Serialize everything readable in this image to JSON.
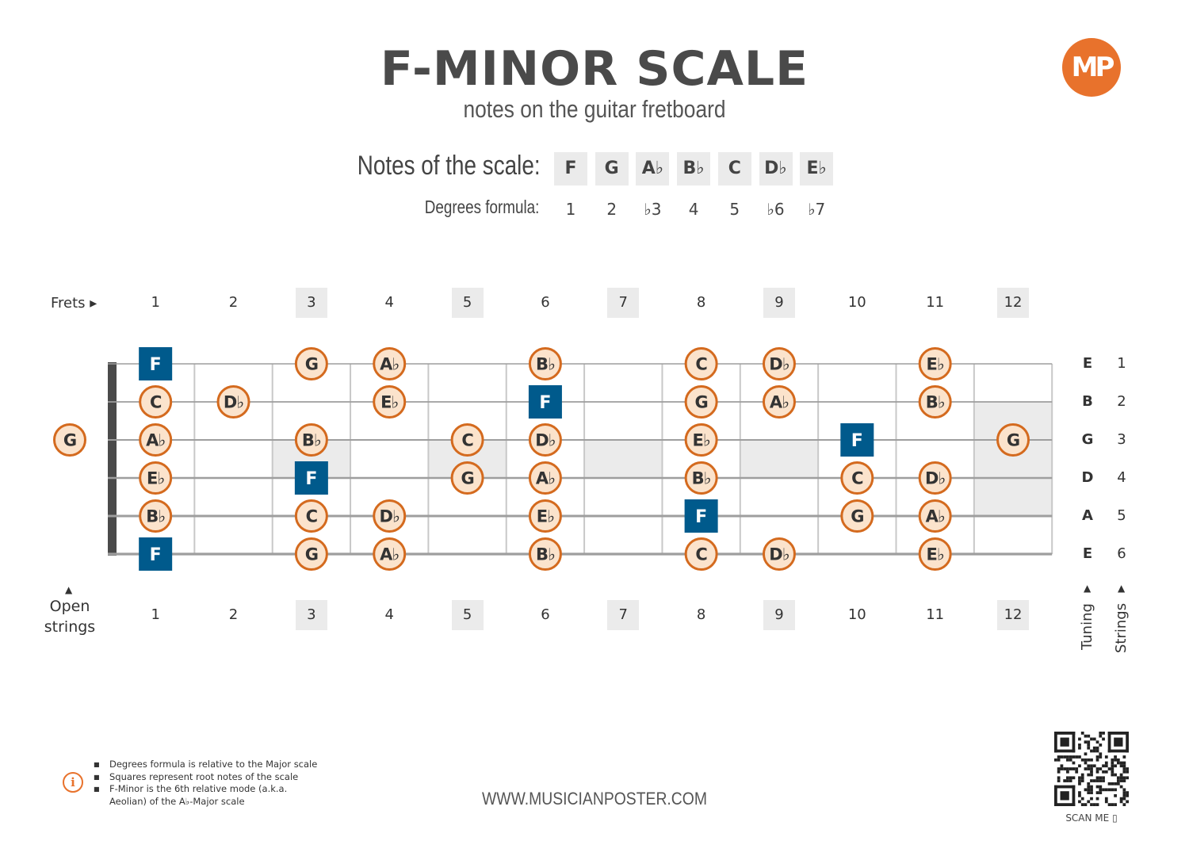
{
  "header": {
    "title": "F-MINOR SCALE",
    "subtitle": "notes on the guitar fretboard",
    "logo_text": "MP"
  },
  "scale": {
    "notes_label": "Notes of the scale:",
    "notes": [
      "F",
      "G",
      "A♭",
      "B♭",
      "C",
      "D♭",
      "E♭"
    ],
    "degrees_label": "Degrees formula:",
    "degrees": [
      "1",
      "2",
      "♭3",
      "4",
      "5",
      "♭6",
      "♭7"
    ]
  },
  "fretboard": {
    "frets_label": "Frets ▸",
    "fret_numbers": [
      "1",
      "2",
      "3",
      "4",
      "5",
      "6",
      "7",
      "8",
      "9",
      "10",
      "11",
      "12"
    ],
    "highlighted_frets": [
      3,
      5,
      7,
      9,
      12
    ],
    "open_label_line1": "Open",
    "open_label_line2": "strings",
    "tuning_label": "Tuning",
    "strings_label": "Strings",
    "strings": [
      {
        "tuning": "E",
        "number": "1"
      },
      {
        "tuning": "B",
        "number": "2"
      },
      {
        "tuning": "G",
        "number": "3"
      },
      {
        "tuning": "D",
        "number": "4"
      },
      {
        "tuning": "A",
        "number": "5"
      },
      {
        "tuning": "E",
        "number": "6"
      }
    ],
    "open_notes": [
      {
        "string": 3,
        "note": "G"
      }
    ],
    "notes": [
      {
        "string": 1,
        "fret": 1,
        "note": "F",
        "root": true
      },
      {
        "string": 1,
        "fret": 3,
        "note": "G",
        "root": false
      },
      {
        "string": 1,
        "fret": 4,
        "note": "A♭",
        "root": false
      },
      {
        "string": 1,
        "fret": 6,
        "note": "B♭",
        "root": false
      },
      {
        "string": 1,
        "fret": 8,
        "note": "C",
        "root": false
      },
      {
        "string": 1,
        "fret": 9,
        "note": "D♭",
        "root": false
      },
      {
        "string": 1,
        "fret": 11,
        "note": "E♭",
        "root": false
      },
      {
        "string": 2,
        "fret": 1,
        "note": "C",
        "root": false
      },
      {
        "string": 2,
        "fret": 2,
        "note": "D♭",
        "root": false
      },
      {
        "string": 2,
        "fret": 4,
        "note": "E♭",
        "root": false
      },
      {
        "string": 2,
        "fret": 6,
        "note": "F",
        "root": true
      },
      {
        "string": 2,
        "fret": 8,
        "note": "G",
        "root": false
      },
      {
        "string": 2,
        "fret": 9,
        "note": "A♭",
        "root": false
      },
      {
        "string": 2,
        "fret": 11,
        "note": "B♭",
        "root": false
      },
      {
        "string": 3,
        "fret": 1,
        "note": "A♭",
        "root": false
      },
      {
        "string": 3,
        "fret": 3,
        "note": "B♭",
        "root": false
      },
      {
        "string": 3,
        "fret": 5,
        "note": "C",
        "root": false
      },
      {
        "string": 3,
        "fret": 6,
        "note": "D♭",
        "root": false
      },
      {
        "string": 3,
        "fret": 8,
        "note": "E♭",
        "root": false
      },
      {
        "string": 3,
        "fret": 10,
        "note": "F",
        "root": true
      },
      {
        "string": 3,
        "fret": 12,
        "note": "G",
        "root": false
      },
      {
        "string": 4,
        "fret": 1,
        "note": "E♭",
        "root": false
      },
      {
        "string": 4,
        "fret": 3,
        "note": "F",
        "root": true
      },
      {
        "string": 4,
        "fret": 5,
        "note": "G",
        "root": false
      },
      {
        "string": 4,
        "fret": 6,
        "note": "A♭",
        "root": false
      },
      {
        "string": 4,
        "fret": 8,
        "note": "B♭",
        "root": false
      },
      {
        "string": 4,
        "fret": 10,
        "note": "C",
        "root": false
      },
      {
        "string": 4,
        "fret": 11,
        "note": "D♭",
        "root": false
      },
      {
        "string": 5,
        "fret": 1,
        "note": "B♭",
        "root": false
      },
      {
        "string": 5,
        "fret": 3,
        "note": "C",
        "root": false
      },
      {
        "string": 5,
        "fret": 4,
        "note": "D♭",
        "root": false
      },
      {
        "string": 5,
        "fret": 6,
        "note": "E♭",
        "root": false
      },
      {
        "string": 5,
        "fret": 8,
        "note": "F",
        "root": true
      },
      {
        "string": 5,
        "fret": 10,
        "note": "G",
        "root": false
      },
      {
        "string": 5,
        "fret": 11,
        "note": "A♭",
        "root": false
      },
      {
        "string": 6,
        "fret": 1,
        "note": "F",
        "root": true
      },
      {
        "string": 6,
        "fret": 3,
        "note": "G",
        "root": false
      },
      {
        "string": 6,
        "fret": 4,
        "note": "A♭",
        "root": false
      },
      {
        "string": 6,
        "fret": 6,
        "note": "B♭",
        "root": false
      },
      {
        "string": 6,
        "fret": 8,
        "note": "C",
        "root": false
      },
      {
        "string": 6,
        "fret": 9,
        "note": "D♭",
        "root": false
      },
      {
        "string": 6,
        "fret": 11,
        "note": "E♭",
        "root": false
      }
    ]
  },
  "colors": {
    "root_fill": "#005a8c",
    "note_fill": "#fbe3cc",
    "note_border": "#d46a1e",
    "accent": "#e8722c",
    "inlay": "#ebebeb"
  },
  "footer": {
    "footnotes": [
      "Degrees formula is relative to the Major scale",
      "Squares represent root notes of the scale",
      "F-Minor is the 6th relative mode (a.k.a. Aeolian) of the A♭-Major scale"
    ],
    "website": "WWW.MUSICIANPOSTER.COM",
    "scan_label": "SCAN ME"
  }
}
